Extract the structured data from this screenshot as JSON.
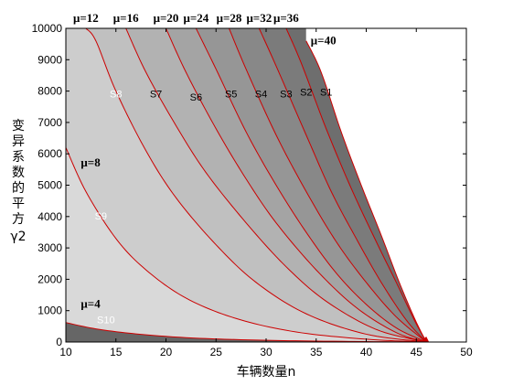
{
  "chart_data": {
    "type": "area",
    "title": "",
    "xlabel": "车辆数量n",
    "ylabel_chars": [
      "变",
      "异",
      "系",
      "数",
      "的",
      "平",
      "方"
    ],
    "ylabel_symbol": "γ2",
    "xlim": [
      10,
      50
    ],
    "ylim": [
      0,
      10000
    ],
    "xticks": [
      10,
      15,
      20,
      25,
      30,
      35,
      40,
      45,
      50
    ],
    "yticks": [
      0,
      1000,
      2000,
      3000,
      4000,
      5000,
      6000,
      7000,
      8000,
      9000,
      10000
    ],
    "grid": false,
    "convergence_point": [
      46,
      0
    ],
    "boundaries": [
      {
        "mu": 4,
        "label": "μ=4",
        "points": [
          [
            10,
            620
          ],
          [
            13,
            420
          ],
          [
            17,
            260
          ],
          [
            22,
            140
          ],
          [
            28,
            70
          ],
          [
            35,
            30
          ],
          [
            46,
            0
          ]
        ]
      },
      {
        "mu": 8,
        "label": "μ=8",
        "points": [
          [
            10,
            6200
          ],
          [
            12,
            4800
          ],
          [
            15,
            3300
          ],
          [
            18,
            2300
          ],
          [
            22,
            1400
          ],
          [
            27,
            750
          ],
          [
            33,
            320
          ],
          [
            40,
            90
          ],
          [
            46,
            0
          ]
        ]
      },
      {
        "mu": 12,
        "label": "μ=12",
        "points": [
          [
            12,
            10000
          ],
          [
            13,
            9600
          ],
          [
            15,
            8000
          ],
          [
            18,
            6100
          ],
          [
            21,
            4600
          ],
          [
            25,
            3100
          ],
          [
            29,
            1900
          ],
          [
            34,
            900
          ],
          [
            40,
            250
          ],
          [
            46,
            0
          ]
        ]
      },
      {
        "mu": 16,
        "label": "μ=16",
        "points": [
          [
            16,
            10000
          ],
          [
            18,
            8600
          ],
          [
            21,
            6900
          ],
          [
            24,
            5400
          ],
          [
            28,
            3800
          ],
          [
            32,
            2400
          ],
          [
            36,
            1300
          ],
          [
            41,
            400
          ],
          [
            46,
            0
          ]
        ]
      },
      {
        "mu": 20,
        "label": "μ=20",
        "points": [
          [
            20,
            10000
          ],
          [
            22,
            8600
          ],
          [
            25,
            6800
          ],
          [
            28,
            5200
          ],
          [
            31,
            3800
          ],
          [
            35,
            2300
          ],
          [
            39,
            1100
          ],
          [
            43,
            300
          ],
          [
            46,
            0
          ]
        ]
      },
      {
        "mu": 24,
        "label": "μ=24",
        "points": [
          [
            23,
            10000
          ],
          [
            25,
            8700
          ],
          [
            28,
            6700
          ],
          [
            31,
            5000
          ],
          [
            34,
            3500
          ],
          [
            37,
            2200
          ],
          [
            40,
            1200
          ],
          [
            43,
            450
          ],
          [
            46,
            0
          ]
        ]
      },
      {
        "mu": 28,
        "label": "μ=28",
        "points": [
          [
            26.3,
            10000
          ],
          [
            28,
            8700
          ],
          [
            31,
            6600
          ],
          [
            34,
            4800
          ],
          [
            37,
            3200
          ],
          [
            40,
            1900
          ],
          [
            43,
            800
          ],
          [
            46,
            0
          ]
        ]
      },
      {
        "mu": 32,
        "label": "μ=32",
        "points": [
          [
            29.3,
            10000
          ],
          [
            31,
            8800
          ],
          [
            34,
            6600
          ],
          [
            36.5,
            4800
          ],
          [
            39,
            3300
          ],
          [
            41.5,
            1900
          ],
          [
            44,
            700
          ],
          [
            46,
            0
          ]
        ]
      },
      {
        "mu": 36,
        "label": "μ=36",
        "points": [
          [
            32,
            10000
          ],
          [
            33.5,
            8900
          ],
          [
            36,
            6800
          ],
          [
            38.5,
            4900
          ],
          [
            41,
            3200
          ],
          [
            43,
            1900
          ],
          [
            44.8,
            700
          ],
          [
            46,
            0
          ]
        ]
      },
      {
        "mu": 40,
        "label": "μ=40",
        "points": [
          [
            34,
            9600
          ],
          [
            35.5,
            8600
          ],
          [
            37.5,
            6700
          ],
          [
            39.5,
            5000
          ],
          [
            41.5,
            3400
          ],
          [
            43.3,
            1900
          ],
          [
            44.9,
            700
          ],
          [
            46,
            0
          ]
        ]
      }
    ],
    "regions": [
      {
        "label": "S10",
        "x": 14,
        "y": 600,
        "fill": "#6e6e6e",
        "text_color": "#ffffff"
      },
      {
        "label": "S9",
        "x": 13.5,
        "y": 3900,
        "fill": "#7b7b7b",
        "text_color": "#ffffff"
      },
      {
        "label": "S8",
        "x": 15,
        "y": 7800,
        "fill": "#888888",
        "text_color": "#ffffff"
      },
      {
        "label": "S7",
        "x": 19,
        "y": 7800,
        "fill": "#969696",
        "text_color": "#000000"
      },
      {
        "label": "S6",
        "x": 23,
        "y": 7700,
        "fill": "#a4a4a4",
        "text_color": "#000000"
      },
      {
        "label": "S5",
        "x": 26.5,
        "y": 7800,
        "fill": "#b2b2b2",
        "text_color": "#000000"
      },
      {
        "label": "S4",
        "x": 29.5,
        "y": 7800,
        "fill": "#c0c0c0",
        "text_color": "#000000"
      },
      {
        "label": "S3",
        "x": 32,
        "y": 7800,
        "fill": "#cdcdcd",
        "text_color": "#000000"
      },
      {
        "label": "S2",
        "x": 34,
        "y": 7850,
        "fill": "#d9d9d9",
        "text_color": "#000000"
      },
      {
        "label": "S1",
        "x": 36,
        "y": 7850,
        "fill": "#e6e6e6",
        "text_color": "#000000"
      }
    ],
    "colors": {
      "boundary": "#cc0000",
      "base_fill": "#666666",
      "right_fill": "#ffffff"
    }
  }
}
